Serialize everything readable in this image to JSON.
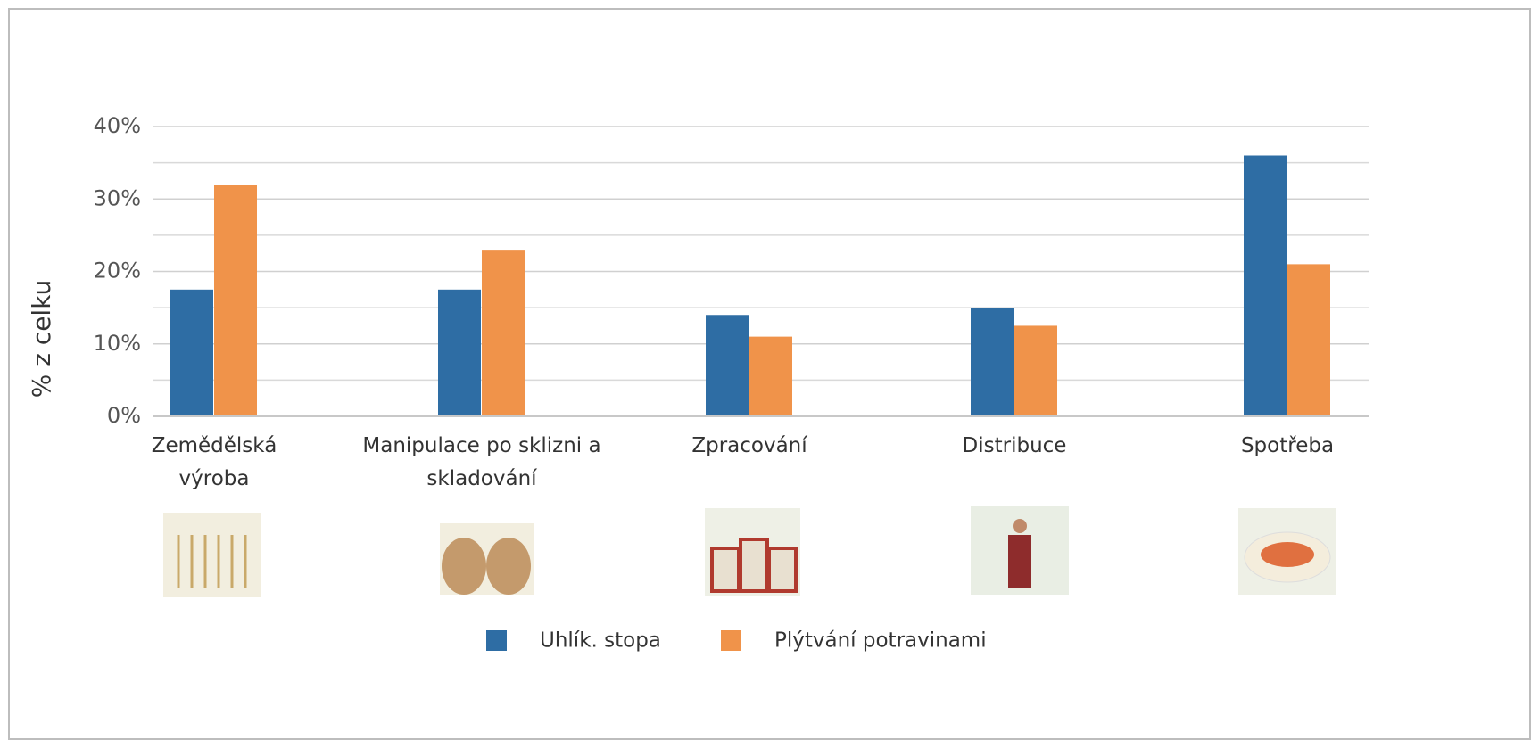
{
  "chart_data": {
    "type": "bar",
    "y_label": "% z celku",
    "categories": [
      "Zemědělská výroba",
      "Manipulace po sklizni a skladování",
      "Zpracování",
      "Distribuce",
      "Spotřeba"
    ],
    "series": [
      {
        "name": "Uhlík. stopa",
        "color": "#2e6da4",
        "values": [
          17.5,
          17.5,
          14,
          15,
          36
        ]
      },
      {
        "name": "Plýtvání potravinami",
        "color": "#f0934a",
        "values": [
          32,
          23,
          11,
          12.5,
          21
        ]
      }
    ],
    "ylim": [
      0,
      40
    ],
    "yticks": [
      {
        "value": 0,
        "label": "0%"
      },
      {
        "value": 10,
        "label": "10%"
      },
      {
        "value": 20,
        "label": "20%"
      },
      {
        "value": 30,
        "label": "30%"
      },
      {
        "value": 40,
        "label": "40%"
      }
    ],
    "minor_grid": [
      5,
      15,
      25,
      35
    ],
    "grid": true,
    "legend": "bottom"
  }
}
